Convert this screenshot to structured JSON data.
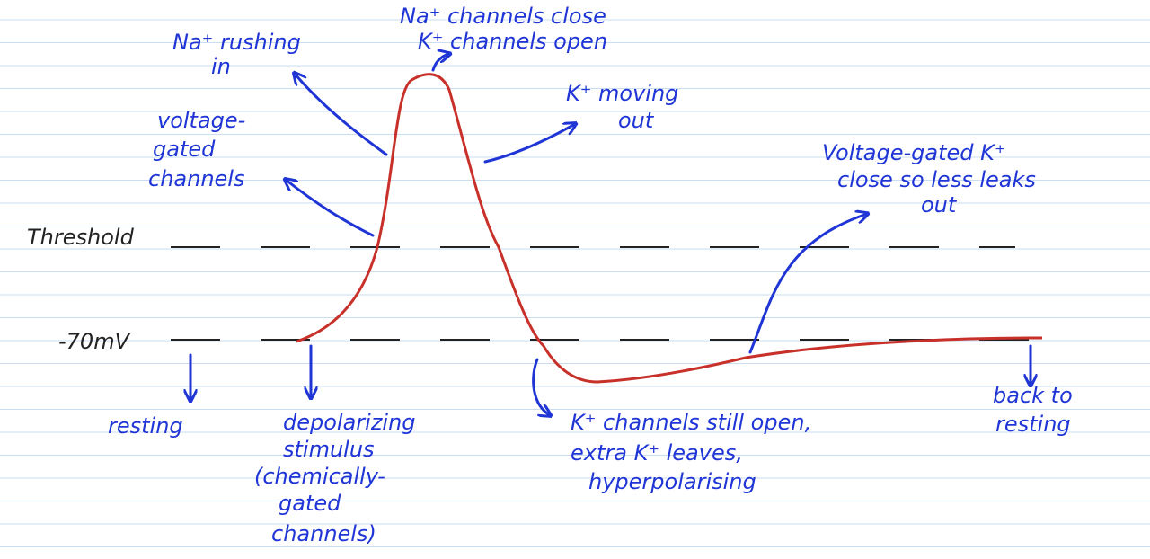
{
  "title_labels": [
    {
      "lines": [
        "Na⁺ rushing",
        "in"
      ]
    },
    {
      "lines": [
        "Na⁺ channels close",
        "K⁺ channels open"
      ]
    },
    {
      "lines": [
        "K⁺ moving",
        "out"
      ]
    },
    {
      "lines": [
        "voltage-",
        "gated",
        "channels"
      ]
    },
    {
      "lines": [
        "Threshold"
      ]
    },
    {
      "lines": [
        "-70mV"
      ]
    },
    {
      "lines": [
        "resting"
      ]
    },
    {
      "lines": [
        "depolarizing",
        "stimulus",
        "(chemically-",
        "gated",
        "channels)"
      ]
    },
    {
      "lines": [
        "K⁺ channels still open,",
        "extra K⁺ leaves,",
        "hyperpolarising"
      ]
    },
    {
      "lines": [
        "Voltage-gated K⁺",
        "close so less leaks",
        "out"
      ]
    },
    {
      "lines": [
        "back to",
        "resting"
      ]
    }
  ]
}
